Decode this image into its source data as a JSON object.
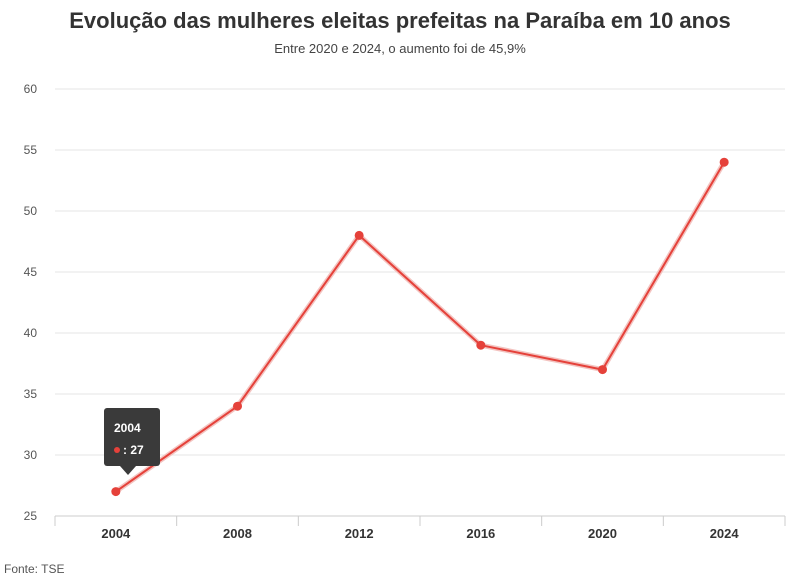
{
  "header": {
    "title": "Evolução das mulheres eleitas prefeitas na Paraíba em 10 anos",
    "subtitle": "Entre 2020 e 2024, o aumento foi de 45,9%"
  },
  "footer": {
    "source": "Fonte: TSE"
  },
  "tooltip": {
    "title": "2004",
    "value_text": ": 27"
  },
  "colors": {
    "series": "#e5413a",
    "grid": "#e6e6e6",
    "axis": "#cccccc",
    "tooltip_bg": "#3a3a3a"
  },
  "chart_data": {
    "type": "line",
    "title": "Evolução das mulheres eleitas prefeitas na Paraíba em 10 anos",
    "subtitle": "Entre 2020 e 2024, o aumento foi de 45,9%",
    "categories": [
      "2004",
      "2008",
      "2012",
      "2016",
      "2020",
      "2024"
    ],
    "series": [
      {
        "values": [
          27,
          34,
          48,
          39,
          37,
          54
        ]
      }
    ],
    "ylim": [
      25,
      60
    ],
    "yticks": [
      25,
      30,
      35,
      40,
      45,
      50,
      55,
      60
    ],
    "xlabel": "",
    "ylabel": "",
    "grid": true,
    "legend": "none"
  }
}
